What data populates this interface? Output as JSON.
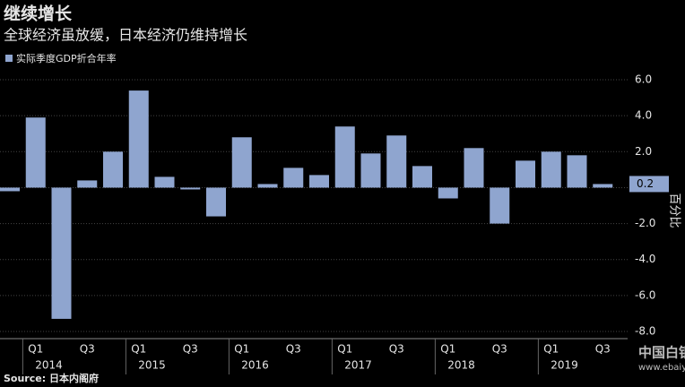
{
  "chart_data": {
    "type": "bar",
    "title": "继续增长",
    "subtitle": "全球经济虽放缓，日本经济仍维持增长",
    "source": "Source: 日本内阁府",
    "y_label": "百分比",
    "watermark": [
      "中国白银网",
      "www.ebaiyin.com"
    ],
    "last_value_label": "0.2",
    "categories": [
      null,
      "Q1",
      null,
      "Q3",
      null,
      "Q1",
      null,
      "Q3",
      null,
      "Q1",
      null,
      "Q3",
      null,
      "Q1",
      null,
      "Q3",
      null,
      "Q1",
      null,
      "Q3",
      null,
      "Q1",
      null,
      "Q3"
    ],
    "years": [
      "2014",
      "2015",
      "2016",
      "2017",
      "2018",
      "2019"
    ],
    "series": [
      {
        "name": "实际季度GDP折合年率",
        "color": "#8fa5cf",
        "values": [
          -0.2,
          3.9,
          -7.3,
          0.4,
          2.0,
          5.4,
          0.6,
          -0.1,
          -1.6,
          2.8,
          0.2,
          1.1,
          0.7,
          3.4,
          1.9,
          2.9,
          1.2,
          -0.6,
          2.2,
          -2.0,
          1.5,
          2.0,
          1.8,
          0.2
        ]
      }
    ],
    "ylim": [
      -8.4,
      6.7
    ],
    "yticks": [
      {
        "value": 6,
        "label": "6.0"
      },
      {
        "value": 4,
        "label": "4.0"
      },
      {
        "value": 2,
        "label": "2.0"
      },
      {
        "value": 0,
        "label": "0"
      },
      {
        "value": -2,
        "label": "-2.0"
      },
      {
        "value": -4,
        "label": "-4.0"
      },
      {
        "value": -6,
        "label": "-6.0"
      },
      {
        "value": -8,
        "label": "-8.0"
      }
    ],
    "grid": true
  }
}
